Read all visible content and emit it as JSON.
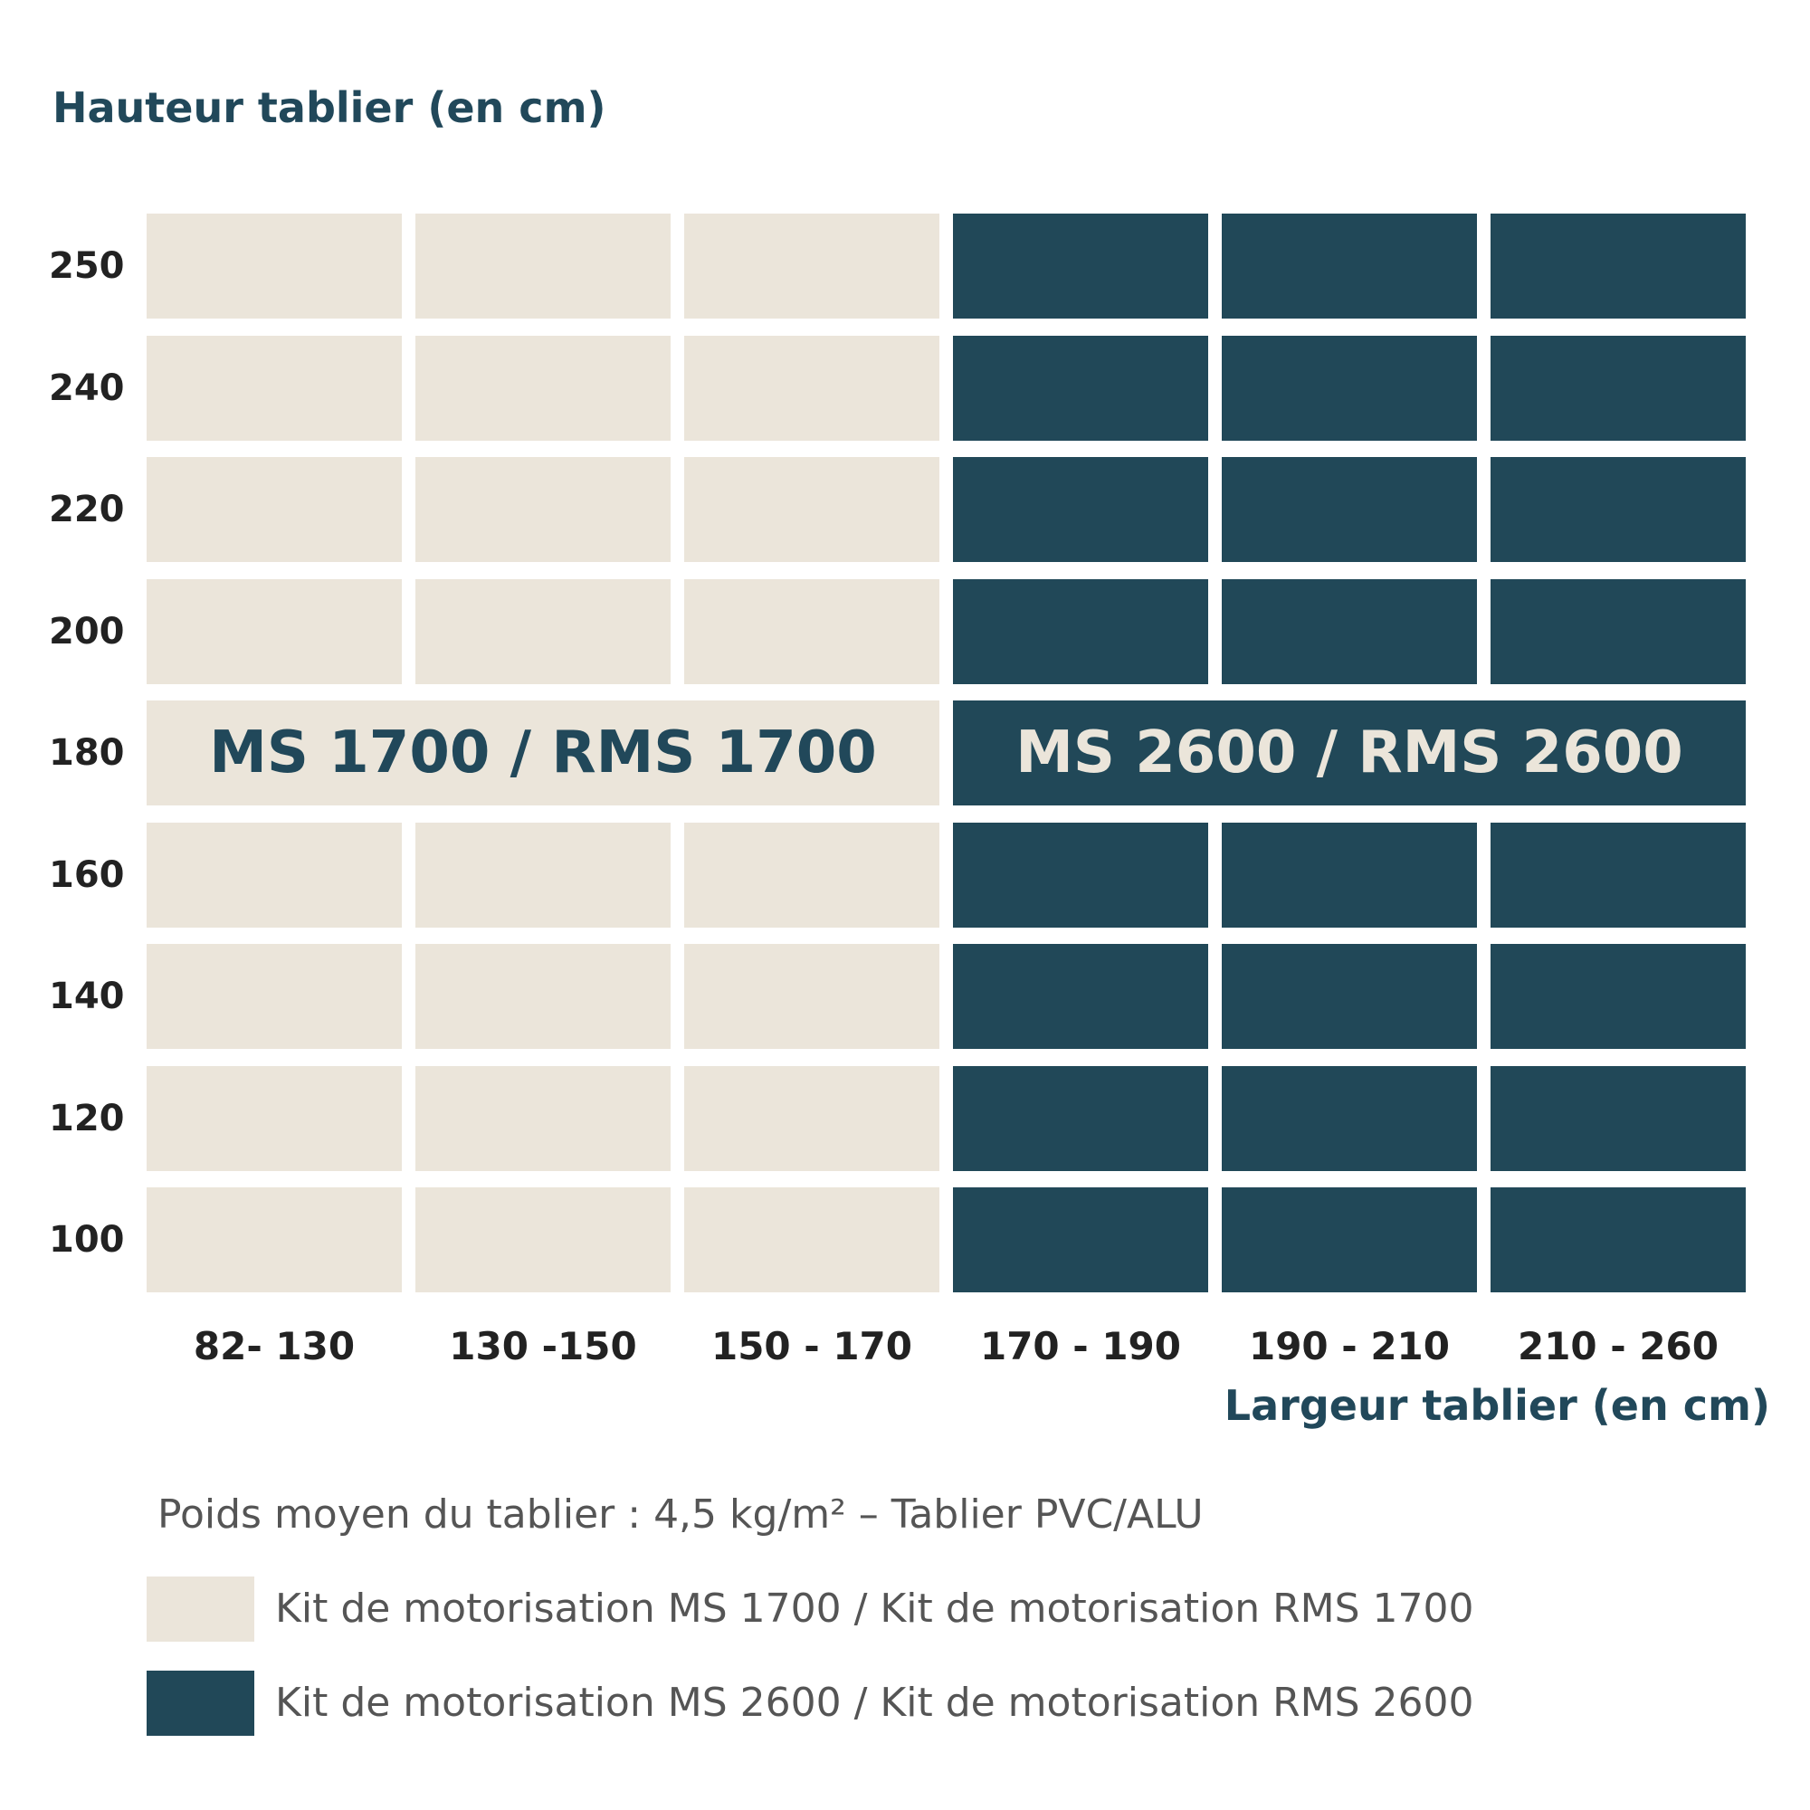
{
  "chart_data": {
    "type": "heatmap",
    "title": "",
    "ylabel": "Hauteur tablier (en cm)",
    "xlabel": "Largeur tablier (en cm)",
    "x_categories": [
      "82- 130",
      "130 -150",
      "150 - 170",
      "170 - 190",
      "190 - 210",
      "210 - 260"
    ],
    "y_categories": [
      "250",
      "240",
      "220",
      "200",
      "180",
      "160",
      "140",
      "120",
      "100"
    ],
    "classes": [
      {
        "id": "ms1700",
        "band_label": "MS 1700 / RMS 1700",
        "legend": "Kit de motorisation MS 1700 / Kit de motorisation RMS 1700",
        "color": "#ebe5da",
        "text_color": "#21485a"
      },
      {
        "id": "ms2600",
        "band_label": "MS 2600 / RMS 2600",
        "legend": "Kit de motorisation MS 2600 / Kit de motorisation RMS 2600",
        "color": "#214858",
        "text_color": "#ebe5da"
      }
    ],
    "cell_class_by_column": [
      "ms1700",
      "ms1700",
      "ms1700",
      "ms2600",
      "ms2600",
      "ms2600"
    ],
    "band_label_row": "180",
    "note": "Poids moyen du tablier : 4,5 kg/m² – Tablier PVC/ALU"
  }
}
